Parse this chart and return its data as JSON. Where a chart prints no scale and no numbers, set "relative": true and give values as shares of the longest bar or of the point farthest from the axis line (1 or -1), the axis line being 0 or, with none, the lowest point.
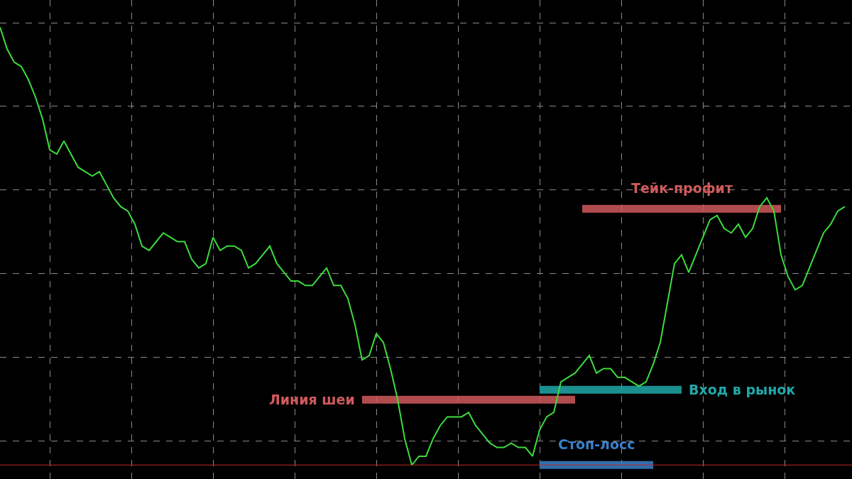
{
  "chart_data": {
    "type": "line",
    "relative": true,
    "grid": true,
    "legend": false,
    "marker": "none",
    "categories": [
      null,
      null,
      null,
      null,
      null,
      null,
      null,
      null,
      null,
      null,
      null,
      null,
      null,
      null,
      null,
      null,
      null,
      null,
      null,
      null,
      null,
      null,
      null,
      null,
      null,
      null,
      null,
      null,
      null,
      null,
      null,
      null,
      null,
      null,
      null,
      null,
      null,
      null,
      null,
      null,
      null,
      null,
      null,
      null,
      null,
      null,
      null,
      null,
      null,
      null,
      null,
      null,
      null,
      null,
      null,
      null,
      null,
      null,
      null,
      null,
      null,
      null,
      null,
      null,
      null,
      null,
      null,
      null,
      null,
      null,
      null,
      null,
      null,
      null,
      null,
      null,
      null,
      null,
      null,
      null,
      null,
      null,
      null,
      null,
      null,
      null,
      null,
      null,
      null,
      null,
      null,
      null,
      null,
      null,
      null,
      null,
      null,
      null,
      null,
      null,
      null,
      null,
      null,
      null,
      null,
      null,
      null,
      null,
      null,
      null,
      null,
      null,
      null,
      null,
      null,
      null,
      null,
      null,
      null,
      null
    ],
    "series": [
      {
        "color": "#3ddc3d",
        "values": [
          1.0,
          0.95,
          0.92,
          0.91,
          0.88,
          0.84,
          0.79,
          0.72,
          0.71,
          0.74,
          0.71,
          0.68,
          0.67,
          0.66,
          0.67,
          0.64,
          0.61,
          0.59,
          0.58,
          0.55,
          0.5,
          0.49,
          0.51,
          0.53,
          0.52,
          0.51,
          0.51,
          0.47,
          0.45,
          0.46,
          0.52,
          0.49,
          0.5,
          0.5,
          0.49,
          0.45,
          0.46,
          0.48,
          0.5,
          0.46,
          0.44,
          0.42,
          0.42,
          0.41,
          0.41,
          0.43,
          0.45,
          0.41,
          0.41,
          0.38,
          0.32,
          0.24,
          0.25,
          0.3,
          0.28,
          0.22,
          0.15,
          0.06,
          0.0,
          0.02,
          0.02,
          0.06,
          0.09,
          0.11,
          0.11,
          0.11,
          0.12,
          0.09,
          0.07,
          0.05,
          0.04,
          0.04,
          0.05,
          0.04,
          0.04,
          0.02,
          0.08,
          0.11,
          0.12,
          0.19,
          0.2,
          0.21,
          0.23,
          0.25,
          0.21,
          0.22,
          0.22,
          0.2,
          0.2,
          0.19,
          0.18,
          0.19,
          0.23,
          0.28,
          0.37,
          0.46,
          0.48,
          0.44,
          0.48,
          0.52,
          0.56,
          0.57,
          0.54,
          0.53,
          0.55,
          0.52,
          0.54,
          0.59,
          0.61,
          0.58,
          0.48,
          0.43,
          0.4,
          0.41,
          0.45,
          0.49,
          0.53,
          0.55,
          0.58,
          0.59
        ]
      },
      {
        "name": "Тейк-профит",
        "color": "#d05a5c",
        "values": [
          null,
          null,
          null,
          null,
          null,
          null,
          null,
          null,
          null,
          null,
          null,
          null,
          null,
          null,
          null,
          null,
          null,
          null,
          null,
          null,
          null,
          null,
          null,
          null,
          null,
          null,
          null,
          null,
          null,
          null,
          null,
          null,
          null,
          null,
          null,
          null,
          null,
          null,
          null,
          null,
          null,
          null,
          null,
          null,
          null,
          null,
          null,
          null,
          null,
          null,
          null,
          null,
          null,
          null,
          null,
          null,
          null,
          null,
          null,
          null,
          null,
          null,
          null,
          null,
          null,
          null,
          null,
          null,
          null,
          null,
          null,
          null,
          null,
          null,
          null,
          null,
          null,
          null,
          null,
          null,
          null,
          null,
          0.585,
          0.585,
          0.585,
          0.585,
          0.585,
          0.585,
          0.585,
          0.585,
          0.585,
          0.585,
          0.585,
          0.585,
          0.585,
          0.585,
          0.585,
          0.585,
          0.585,
          0.585,
          0.585,
          0.585,
          0.585,
          0.585,
          0.585,
          0.585,
          0.585,
          0.585,
          0.585,
          0.585,
          0.585,
          null,
          null,
          null,
          null,
          null,
          null,
          null,
          null,
          null
        ]
      },
      {
        "name": "Линия шеи",
        "color": "#d05a5c",
        "values": [
          null,
          null,
          null,
          null,
          null,
          null,
          null,
          null,
          null,
          null,
          null,
          null,
          null,
          null,
          null,
          null,
          null,
          null,
          null,
          null,
          null,
          null,
          null,
          null,
          null,
          null,
          null,
          null,
          null,
          null,
          null,
          null,
          null,
          null,
          null,
          null,
          null,
          null,
          null,
          null,
          null,
          null,
          null,
          null,
          null,
          null,
          null,
          null,
          null,
          null,
          null,
          0.149,
          0.149,
          0.149,
          0.149,
          0.149,
          0.149,
          0.149,
          0.149,
          0.149,
          0.149,
          0.149,
          0.149,
          0.149,
          0.149,
          0.149,
          0.149,
          0.149,
          0.149,
          0.149,
          0.149,
          0.149,
          0.149,
          0.149,
          0.149,
          0.149,
          0.149,
          0.149,
          0.149,
          0.149,
          0.149,
          0.149,
          null,
          null,
          null,
          null,
          null,
          null,
          null,
          null,
          null,
          null,
          null,
          null,
          null,
          null,
          null,
          null,
          null,
          null,
          null,
          null,
          null,
          null,
          null,
          null,
          null,
          null,
          null,
          null,
          null,
          null,
          null,
          null,
          null,
          null,
          null,
          null,
          null,
          null
        ]
      },
      {
        "name": "Вход в рынок",
        "color": "#22a8aa",
        "values": [
          null,
          null,
          null,
          null,
          null,
          null,
          null,
          null,
          null,
          null,
          null,
          null,
          null,
          null,
          null,
          null,
          null,
          null,
          null,
          null,
          null,
          null,
          null,
          null,
          null,
          null,
          null,
          null,
          null,
          null,
          null,
          null,
          null,
          null,
          null,
          null,
          null,
          null,
          null,
          null,
          null,
          null,
          null,
          null,
          null,
          null,
          null,
          null,
          null,
          null,
          null,
          null,
          null,
          null,
          null,
          null,
          null,
          null,
          null,
          null,
          null,
          null,
          null,
          null,
          null,
          null,
          null,
          null,
          null,
          null,
          null,
          null,
          null,
          null,
          null,
          null,
          0.172,
          0.172,
          0.172,
          0.172,
          0.172,
          0.172,
          0.172,
          0.172,
          0.172,
          0.172,
          0.172,
          0.172,
          0.172,
          0.172,
          0.172,
          0.172,
          0.172,
          0.172,
          0.172,
          0.172,
          0.172,
          null,
          null,
          null,
          null,
          null,
          null,
          null,
          null,
          null,
          null,
          null,
          null,
          null,
          null,
          null,
          null,
          null,
          null,
          null,
          null,
          null,
          null,
          null
        ]
      },
      {
        "name": "Стоп-лосс",
        "color": "#3a80cc",
        "values": [
          null,
          null,
          null,
          null,
          null,
          null,
          null,
          null,
          null,
          null,
          null,
          null,
          null,
          null,
          null,
          null,
          null,
          null,
          null,
          null,
          null,
          null,
          null,
          null,
          null,
          null,
          null,
          null,
          null,
          null,
          null,
          null,
          null,
          null,
          null,
          null,
          null,
          null,
          null,
          null,
          null,
          null,
          null,
          null,
          null,
          null,
          null,
          null,
          null,
          null,
          null,
          null,
          null,
          null,
          null,
          null,
          null,
          null,
          null,
          null,
          null,
          null,
          null,
          null,
          null,
          null,
          null,
          null,
          null,
          null,
          null,
          null,
          null,
          null,
          null,
          null,
          0.0,
          0.0,
          0.0,
          0.0,
          0.0,
          0.0,
          0.0,
          0.0,
          0.0,
          0.0,
          0.0,
          0.0,
          0.0,
          0.0,
          0.0,
          0.0,
          0.0,
          null,
          null,
          null,
          null,
          null,
          null,
          null,
          null,
          null,
          null,
          null,
          null,
          null,
          null,
          null,
          null,
          null,
          null,
          null,
          null,
          null,
          null,
          null,
          null,
          null,
          null,
          null
        ]
      }
    ],
    "ref_lines": [
      {
        "axis": "y",
        "value": 0.0,
        "color": "#c0281e"
      }
    ]
  }
}
